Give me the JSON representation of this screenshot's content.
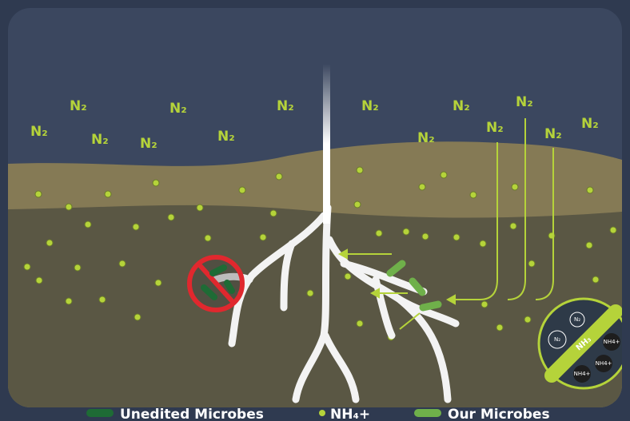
{
  "n2_labels": [
    "N₂",
    "N₂",
    "N₂",
    "N₂",
    "N₂",
    "N₂",
    "N₂",
    "N₂",
    "N₂",
    "N₂",
    "N₂",
    "N₂",
    "N₂",
    "N₂"
  ],
  "legend": [
    "Unedited Microbes",
    "NH₄+",
    "Our Microbes"
  ],
  "badge": {
    "top": "N₂",
    "left": "N₂",
    "center": "NH₃",
    "right": "NH4+",
    "bottom_right": "NH4+",
    "bottom": "NH4+"
  }
}
